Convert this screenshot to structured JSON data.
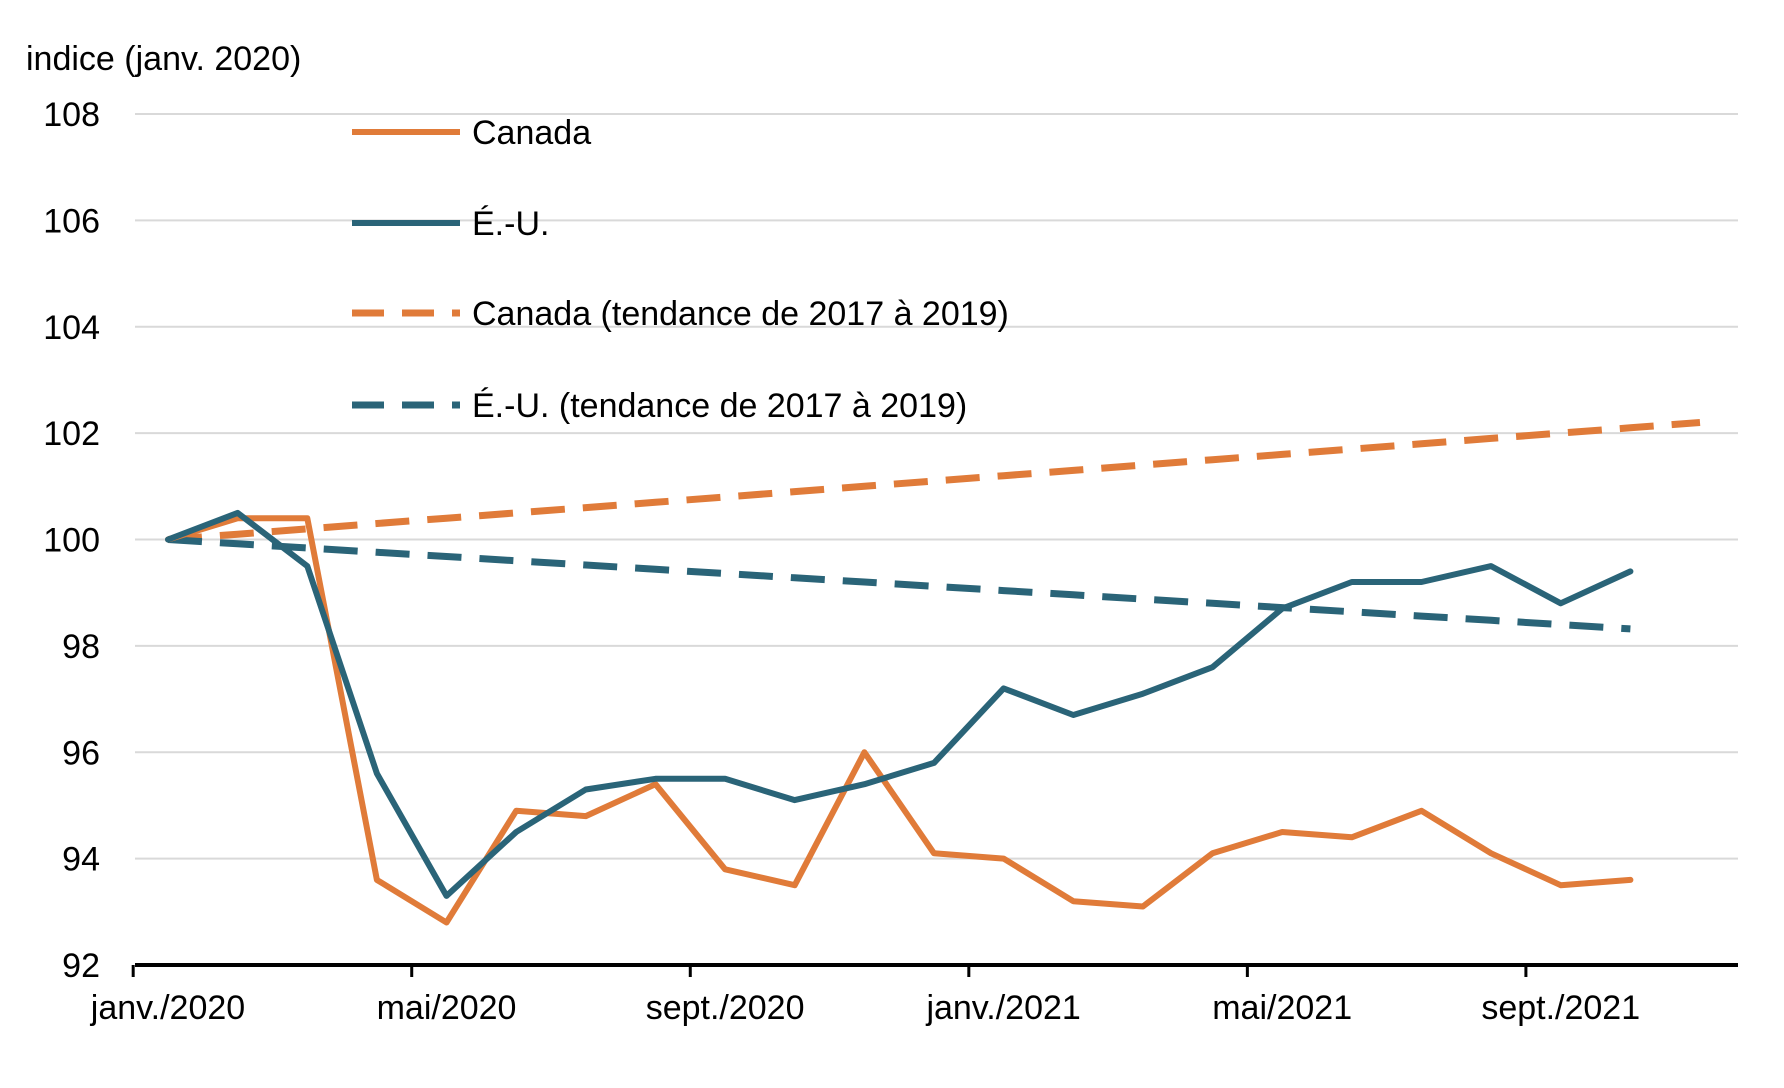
{
  "chart_data": {
    "type": "line",
    "ylabel": "indice (janv. 2020)",
    "ylim": [
      92,
      108
    ],
    "yticks": [
      92,
      94,
      96,
      98,
      100,
      102,
      104,
      106,
      108
    ],
    "grid": true,
    "legend_position": "top-left",
    "x": [
      "janv./2020",
      "févr./2020",
      "mars/2020",
      "avr./2020",
      "mai/2020",
      "juin/2020",
      "juil./2020",
      "août/2020",
      "sept./2020",
      "oct./2020",
      "nov./2020",
      "déc./2020",
      "janv./2021",
      "févr./2021",
      "mars/2021",
      "avr./2021",
      "mai/2021",
      "juin/2021",
      "juil./2021",
      "août/2021",
      "sept./2021",
      "oct./2021",
      "nov./2021"
    ],
    "xticklabels": [
      {
        "index": 0,
        "label": "janv./2020"
      },
      {
        "index": 4,
        "label": "mai/2020"
      },
      {
        "index": 8,
        "label": "sept./2020"
      },
      {
        "index": 12,
        "label": "janv./2021"
      },
      {
        "index": 16,
        "label": "mai/2021"
      },
      {
        "index": 20,
        "label": "sept./2021"
      }
    ],
    "series": [
      {
        "name": "Canada",
        "color": "#E07B39",
        "style": "solid",
        "values": [
          100.0,
          100.4,
          100.4,
          93.6,
          92.8,
          94.9,
          94.8,
          95.4,
          93.8,
          93.5,
          96.0,
          94.1,
          94.0,
          93.2,
          93.1,
          94.1,
          94.5,
          94.4,
          94.9,
          94.1,
          93.5,
          93.6,
          null
        ]
      },
      {
        "name": "É.-U.",
        "color": "#2A6478",
        "style": "solid",
        "values": [
          100.0,
          100.5,
          99.5,
          95.6,
          93.3,
          94.5,
          95.3,
          95.5,
          95.5,
          95.1,
          95.4,
          95.8,
          97.2,
          96.7,
          97.1,
          97.6,
          98.7,
          99.2,
          99.2,
          99.5,
          98.8,
          99.4,
          null
        ]
      },
      {
        "name": "Canada (tendance de 2017 à 2019)",
        "color": "#E07B39",
        "style": "dashed",
        "values": [
          100.0,
          100.1,
          100.2,
          100.3,
          100.4,
          100.5,
          100.6,
          100.7,
          100.8,
          100.9,
          101.0,
          101.1,
          101.2,
          101.3,
          101.4,
          101.5,
          101.6,
          101.7,
          101.8,
          101.9,
          102.0,
          102.1,
          102.2
        ]
      },
      {
        "name": "É.-U. (tendance de 2017 à 2019)",
        "color": "#2A6478",
        "style": "dashed",
        "values": [
          100.0,
          99.92,
          99.84,
          99.76,
          99.68,
          99.6,
          99.52,
          99.44,
          99.36,
          99.28,
          99.2,
          99.12,
          99.04,
          98.96,
          98.88,
          98.8,
          98.72,
          98.64,
          98.56,
          98.48,
          98.4,
          98.32,
          null
        ]
      }
    ]
  }
}
